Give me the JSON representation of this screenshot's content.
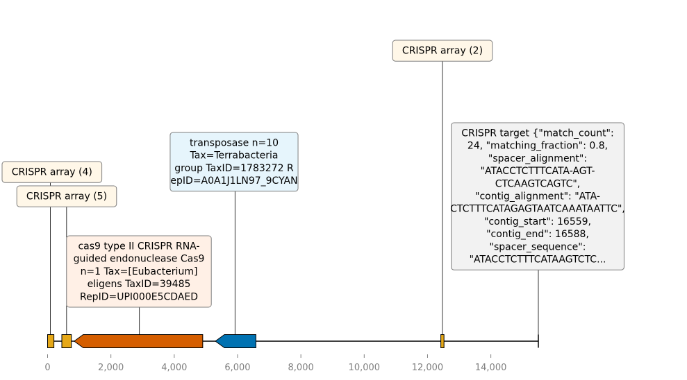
{
  "chart_data": {
    "type": "genome-feature-map",
    "x_range": [
      0,
      15500
    ],
    "x_ticks": [
      0,
      2000,
      4000,
      6000,
      8000,
      10000,
      12000,
      14000
    ],
    "x_tick_labels": [
      "0",
      "2,000",
      "4,000",
      "6,000",
      "8,000",
      "10,000",
      "12,000",
      "14,000"
    ],
    "features": [
      {
        "id": "crispr4_box",
        "start": 0,
        "end": 200,
        "strand": 0,
        "color": "#E6A817"
      },
      {
        "id": "crispr5_box",
        "start": 450,
        "end": 750,
        "strand": 0,
        "color": "#E6A817"
      },
      {
        "id": "cas9",
        "start": 840,
        "end": 4900,
        "strand": -1,
        "color": "#D55E00"
      },
      {
        "id": "transposase",
        "start": 5300,
        "end": 6580,
        "strand": -1,
        "color": "#0072B2"
      },
      {
        "id": "crispr2_box",
        "start": 12420,
        "end": 12520,
        "strand": 0,
        "color": "#E6A817"
      }
    ],
    "annotations": [
      {
        "anchor": 90,
        "fill": "#FFF7E8",
        "lines": [
          "CRISPR array (4)"
        ]
      },
      {
        "anchor": 600,
        "fill": "#FFF7E8",
        "lines": [
          "CRISPR array (5)"
        ]
      },
      {
        "anchor": 2900,
        "fill": "#FFF0E6",
        "lines": [
          "cas9 type II CRISPR RNA-",
          "guided endonuclease Cas9",
          "n=1 Tax=[Eubacterium]",
          "eligens TaxID=39485",
          "RepID=UPI000E5CDAED"
        ]
      },
      {
        "anchor": 5920,
        "fill": "#E6F5FC",
        "lines": [
          "transposase n=10",
          "Tax=Terrabacteria",
          "group TaxID=1783272 R",
          "epID=A0A1J1LN97_9CYAN"
        ]
      },
      {
        "anchor": 12470,
        "fill": "#FFF7E8",
        "lines": [
          "CRISPR array (2)"
        ]
      },
      {
        "anchor": 15500,
        "fill": "#F2F2F2",
        "lines": [
          "CRISPR target {\"match_count\":",
          "24, \"matching_fraction\": 0.8,",
          "\"spacer_alignment\":",
          "\"ATACCTCTTTCATA-AGT-",
          "CTCAAGTCAGTC\",",
          "\"contig_alignment\": \"ATA-",
          "CTCTTTCATAGAGTAATCAAATAATTC\",",
          "\"contig_start\": 16559,",
          "\"contig_end\": 16588,",
          "\"spacer_sequence\":",
          "\"ATACCTCTTTCATAAGTCTC..."
        ]
      }
    ]
  }
}
